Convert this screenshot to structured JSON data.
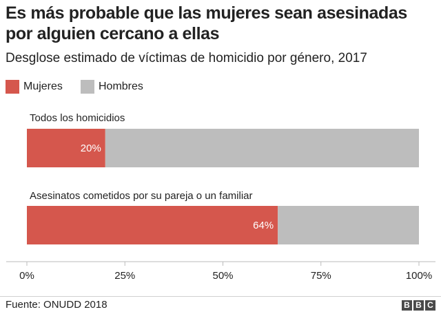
{
  "title": "Es más probable que las mujeres sean asesinadas por alguien cercano a ellas",
  "subtitle": "Desglose estimado de víctimas de homicidio por género, 2017",
  "legend": [
    {
      "label": "Mujeres",
      "color": "#d5574d"
    },
    {
      "label": "Hombres",
      "color": "#bdbdbd"
    }
  ],
  "chart_data": {
    "type": "bar",
    "orientation": "horizontal",
    "stacked": true,
    "normalized": true,
    "categories": [
      "Todos los homicidios",
      "Asesinatos cometidos por su pareja o un familiar"
    ],
    "series": [
      {
        "name": "Mujeres",
        "values": [
          20,
          64
        ],
        "color": "#d5574d",
        "data_labels": [
          "20%",
          "64%"
        ]
      },
      {
        "name": "Hombres",
        "values": [
          80,
          36
        ],
        "color": "#bdbdbd"
      }
    ],
    "xlim": [
      0,
      100
    ],
    "xticks": [
      0,
      25,
      50,
      75,
      100
    ],
    "xtick_labels": [
      "0%",
      "25%",
      "50%",
      "75%",
      "100%"
    ],
    "grid": false,
    "legend_position": "top-left"
  },
  "source": "Fuente: ONUDD 2018",
  "logo": {
    "letters": [
      "B",
      "B",
      "C"
    ]
  }
}
